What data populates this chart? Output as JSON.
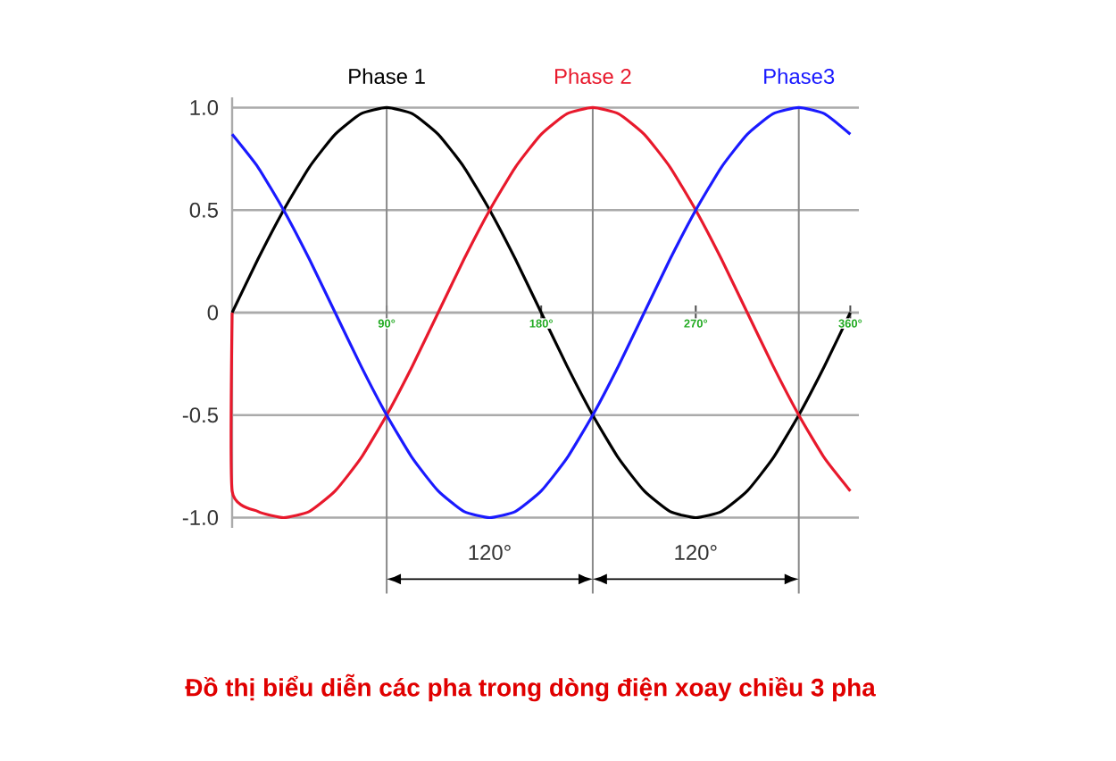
{
  "chart_data": {
    "type": "line",
    "title": "Đồ thị biểu diễn các pha trong dòng điện xoay chiều 3 pha",
    "x": [
      0,
      15,
      30,
      45,
      60,
      75,
      90,
      105,
      120,
      135,
      150,
      165,
      180,
      195,
      210,
      225,
      240,
      255,
      270,
      285,
      300,
      315,
      330,
      345,
      360
    ],
    "series": [
      {
        "name": "Phase 1",
        "color": "#000000",
        "values": [
          0,
          0.26,
          0.5,
          0.71,
          0.87,
          0.97,
          1,
          0.97,
          0.87,
          0.71,
          0.5,
          0.26,
          0,
          -0.26,
          -0.5,
          -0.71,
          -0.87,
          -0.97,
          -1,
          -0.97,
          -0.87,
          -0.71,
          -0.5,
          -0.26,
          0
        ]
      },
      {
        "name": "Phase 2",
        "color": "#e8192c",
        "x": [
          0,
          0,
          15,
          30,
          45,
          60,
          75,
          90,
          105,
          120,
          135,
          150,
          165,
          180,
          195,
          210,
          225,
          240,
          255,
          270,
          285,
          300,
          315,
          330,
          345,
          360
        ],
        "values": [
          0,
          -0.87,
          -0.97,
          -1,
          -0.97,
          -0.87,
          -0.71,
          -0.5,
          -0.26,
          0,
          0.26,
          0.5,
          0.71,
          0.87,
          0.97,
          1,
          0.97,
          0.87,
          0.71,
          0.5,
          0.26,
          0,
          -0.26,
          -0.5,
          -0.71,
          -0.87
        ]
      },
      {
        "name": "Phase3",
        "color": "#1a1aff",
        "values": [
          0.87,
          0.71,
          0.5,
          0.26,
          0,
          -0.26,
          -0.5,
          -0.71,
          -0.87,
          -0.97,
          -1,
          -0.97,
          -0.87,
          -0.71,
          -0.5,
          -0.26,
          0,
          0.26,
          0.5,
          0.71,
          0.87,
          0.97,
          1,
          0.97,
          0.87
        ]
      }
    ],
    "xlim": [
      0,
      365
    ],
    "ylim": [
      -1.05,
      1.05
    ],
    "xticks": [
      {
        "value": 90,
        "label": "90°"
      },
      {
        "value": 180,
        "label": "180°"
      },
      {
        "value": 270,
        "label": "270°"
      },
      {
        "value": 360,
        "label": "360°"
      }
    ],
    "yticks": [
      {
        "value": -1,
        "label": "-1.0"
      },
      -0.5,
      0,
      0.5,
      {
        "value": 1,
        "label": "1.0"
      }
    ],
    "grid": "y",
    "marker": "none",
    "line_style": "solid",
    "ref_lines": [
      {
        "axis": "x",
        "value": 90,
        "color": "#888888"
      },
      {
        "axis": "x",
        "value": 210,
        "color": "#888888"
      },
      {
        "axis": "x",
        "value": 330,
        "color": "#888888"
      }
    ],
    "annotations": [
      "120°",
      "120°"
    ]
  }
}
